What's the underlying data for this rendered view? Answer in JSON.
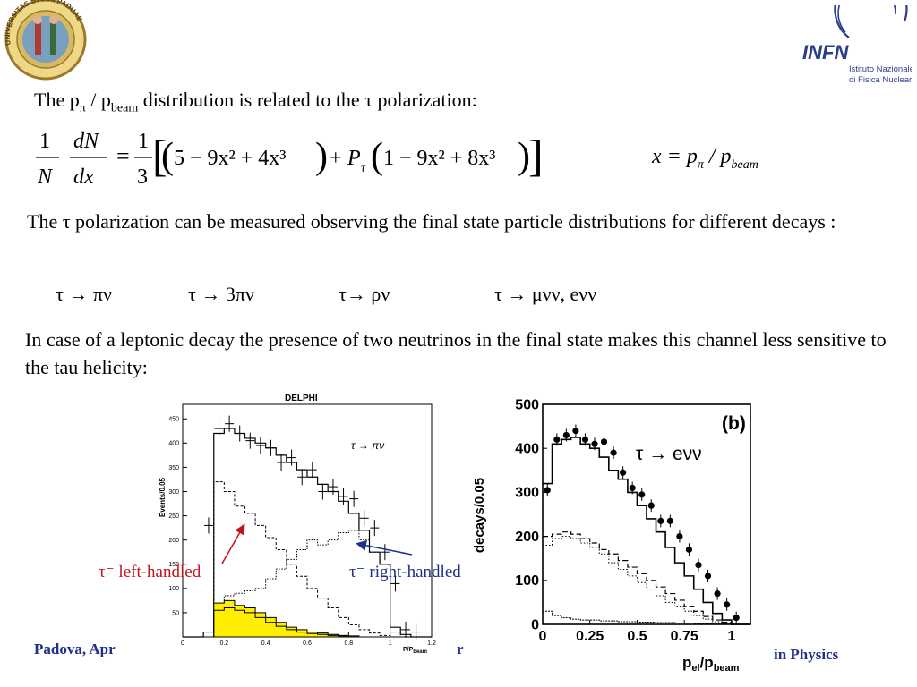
{
  "slide": {
    "intro_prefix": "The p",
    "intro_sub_pi": "π",
    "intro_slash": " / p",
    "intro_sub_beam": "beam",
    "intro_suffix": " distribution is related to the τ polarization:",
    "formula_lhs_1": "1",
    "formula_lhs_N": "N",
    "formula_lhs_dN": "dN",
    "formula_lhs_dx": "dx",
    "formula_third_1": "1",
    "formula_third_3": "3",
    "formula_term1": "5 − 9x² + 4x³",
    "formula_P": "P",
    "formula_P_sub": "τ",
    "formula_term2": "1 − 9x² + 8x³",
    "x_def_lhs": "x = p",
    "x_def_sub_pi": "π",
    "x_def_slash": " / p",
    "x_def_sub_beam": "beam",
    "para1": "The τ polarization can be measured  observing  the final state particle distributions for different decays :",
    "decays": [
      "τ → πν",
      "τ → 3πν",
      "τ→ ρν",
      "τ → μνν, eνν"
    ],
    "para2": "In case of a leptonic decay the presence of two neutrinos in the final state makes this channel less sensitive to the tau helicity:",
    "label_left_handed": "τ⁻ left-handled",
    "label_right_handed": "τ⁻  right-handled",
    "footer_left": "Padova, Apr",
    "footer_mid": "r",
    "footer_right": "in Physics"
  },
  "logos": {
    "university": "UNIVERSITAS STUDII PADUAE",
    "infn_name": "INFN",
    "infn_line1": "Istituto Nazionale",
    "infn_line2": "di Fisica Nucleare"
  },
  "colors": {
    "footer": "#1f2f8a",
    "label_left": "#c0141c",
    "label_right": "#1f2f8a",
    "fill_yellow": "#ffee00",
    "infn_blue": "#2a3f8c"
  },
  "chart_data": [
    {
      "type": "line",
      "title": "DELPHI",
      "annotation": "τ →  πν",
      "ylabel": "Events/0.05",
      "xlabel": "P/P",
      "xlabel_sub": "beam",
      "xlim": [
        0,
        1.2
      ],
      "ylim": [
        0,
        480
      ],
      "x_ticks": [
        "0",
        "0.2",
        "0.4",
        "0.6",
        "0.8",
        "1",
        "1.2"
      ],
      "y_ticks": [
        "50",
        "100",
        "150",
        "200",
        "250",
        "300",
        "350",
        "400",
        "450"
      ],
      "bins_x": [
        0.0,
        0.05,
        0.1,
        0.15,
        0.2,
        0.25,
        0.3,
        0.35,
        0.4,
        0.45,
        0.5,
        0.55,
        0.6,
        0.65,
        0.7,
        0.75,
        0.8,
        0.85,
        0.9,
        0.95,
        1.0,
        1.05,
        1.1,
        1.15
      ],
      "series": [
        {
          "values": [
            0,
            0,
            10,
            420,
            430,
            420,
            410,
            400,
            390,
            375,
            360,
            345,
            330,
            315,
            300,
            280,
            255,
            220,
            175,
            150,
            20,
            5,
            0,
            0
          ]
        },
        {
          "values": [
            0,
            0,
            0,
            320,
            300,
            270,
            255,
            230,
            205,
            180,
            150,
            125,
            100,
            80,
            60,
            40,
            25,
            15,
            8,
            3,
            0,
            0,
            0,
            0
          ]
        },
        {
          "values": [
            0,
            0,
            0,
            50,
            85,
            90,
            95,
            100,
            120,
            140,
            160,
            180,
            200,
            190,
            200,
            215,
            220,
            200,
            175,
            150,
            10,
            0,
            0,
            0
          ]
        },
        {
          "values": [
            0,
            0,
            0,
            70,
            75,
            65,
            60,
            50,
            40,
            30,
            20,
            15,
            10,
            8,
            5,
            3,
            2,
            0,
            0,
            0,
            0,
            0,
            0,
            0
          ]
        },
        {
          "values": [
            0,
            0,
            0,
            55,
            60,
            55,
            50,
            40,
            30,
            22,
            15,
            10,
            7,
            5,
            3,
            2,
            0,
            0,
            0,
            0,
            0,
            0,
            0,
            0
          ]
        }
      ],
      "points_x": [
        0.125,
        0.175,
        0.225,
        0.275,
        0.325,
        0.375,
        0.425,
        0.475,
        0.525,
        0.575,
        0.625,
        0.675,
        0.725,
        0.775,
        0.825,
        0.875,
        0.925,
        0.975,
        1.025,
        1.075,
        1.125
      ],
      "points_y": [
        230,
        430,
        440,
        420,
        405,
        395,
        390,
        360,
        370,
        330,
        345,
        300,
        310,
        290,
        285,
        245,
        225,
        175,
        110,
        15,
        10
      ]
    },
    {
      "type": "line",
      "annotation": "τ → eνν",
      "panel_label": "(b)",
      "ylabel": "decays/0.05",
      "xlabel": "p",
      "xlabel_sub1": "el",
      "xlabel_mid": "/p",
      "xlabel_sub2": "beam",
      "xlim": [
        0,
        1.1
      ],
      "ylim": [
        0,
        500
      ],
      "x_ticks": [
        "0",
        "0.25",
        "0.5",
        "0.75",
        "1"
      ],
      "y_ticks": [
        "0",
        "100",
        "200",
        "300",
        "400",
        "500"
      ],
      "bins_x": [
        0.0,
        0.05,
        0.1,
        0.15,
        0.2,
        0.25,
        0.3,
        0.35,
        0.4,
        0.45,
        0.5,
        0.55,
        0.6,
        0.65,
        0.7,
        0.75,
        0.8,
        0.85,
        0.9,
        0.95,
        1.0,
        1.05
      ],
      "series": [
        {
          "values": [
            320,
            410,
            420,
            425,
            410,
            400,
            380,
            350,
            330,
            300,
            270,
            240,
            210,
            175,
            140,
            110,
            80,
            50,
            25,
            10,
            0,
            0
          ]
        },
        {
          "values": [
            200,
            205,
            210,
            205,
            195,
            185,
            170,
            160,
            145,
            130,
            115,
            100,
            85,
            70,
            55,
            40,
            30,
            18,
            10,
            5,
            0,
            0
          ]
        },
        {
          "values": [
            180,
            195,
            200,
            195,
            185,
            175,
            160,
            140,
            125,
            110,
            95,
            80,
            65,
            50,
            40,
            30,
            20,
            12,
            6,
            2,
            0,
            0
          ]
        },
        {
          "values": [
            30,
            20,
            15,
            12,
            10,
            10,
            8,
            8,
            6,
            6,
            5,
            5,
            4,
            4,
            3,
            3,
            2,
            2,
            1,
            1,
            0,
            0
          ]
        }
      ],
      "points_x": [
        0.025,
        0.075,
        0.125,
        0.175,
        0.225,
        0.275,
        0.325,
        0.375,
        0.425,
        0.475,
        0.525,
        0.575,
        0.625,
        0.675,
        0.725,
        0.775,
        0.825,
        0.875,
        0.925,
        0.975,
        1.025
      ],
      "points_y": [
        305,
        420,
        430,
        440,
        420,
        410,
        415,
        390,
        345,
        310,
        295,
        270,
        235,
        235,
        200,
        170,
        135,
        110,
        70,
        45,
        15
      ]
    }
  ]
}
